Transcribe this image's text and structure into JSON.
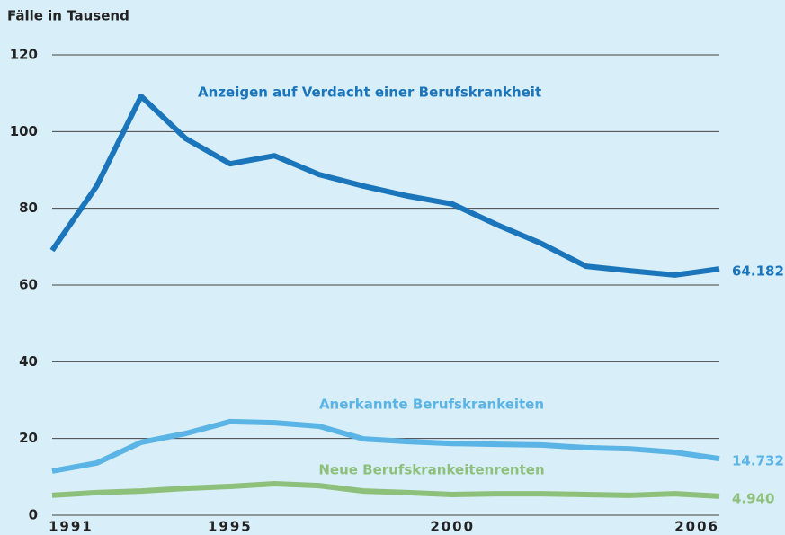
{
  "chart_data": {
    "type": "line",
    "y_axis_label": "Fälle in Tausend",
    "x": [
      1991,
      1992,
      1993,
      1994,
      1995,
      1996,
      1997,
      1998,
      1999,
      2000,
      2001,
      2002,
      2003,
      2004,
      2005,
      2006
    ],
    "xlim": [
      1991,
      2006
    ],
    "xticks": [
      1991,
      1995,
      2000,
      2006
    ],
    "ylim": [
      0,
      120
    ],
    "yticks": [
      0,
      20,
      40,
      60,
      80,
      100,
      120
    ],
    "grid": true,
    "series": [
      {
        "name": "Anzeigen auf Verdacht einer Berufskrankheit",
        "color": "#1a75bb",
        "values": [
          69,
          85.8,
          109.2,
          98.2,
          91.6,
          93.7,
          88.8,
          85.8,
          83.2,
          81.1,
          75.7,
          70.8,
          64.9,
          63.7,
          62.6,
          64.182
        ],
        "value_labels": [
          null,
          null,
          null,
          null,
          null,
          null,
          null,
          null,
          null,
          null,
          null,
          null,
          null,
          null,
          null,
          "64.182"
        ]
      },
      {
        "name": "Anerkannte Berufskrankeiten",
        "color": "#5ab4e5",
        "values": [
          11.5,
          13.6,
          19,
          21.3,
          24.4,
          24.1,
          23.2,
          19.9,
          19.2,
          18.7,
          18.5,
          18.3,
          17.6,
          17.3,
          16.4,
          14.732
        ],
        "value_labels": [
          null,
          null,
          null,
          null,
          null,
          null,
          null,
          null,
          null,
          null,
          null,
          null,
          null,
          null,
          null,
          "14.732"
        ]
      },
      {
        "name": "Neue Berufskrankeitenrenten",
        "color": "#8dc07a",
        "values": [
          5.2,
          5.9,
          6.3,
          7.0,
          7.5,
          8.2,
          7.7,
          6.3,
          5.9,
          5.4,
          5.6,
          5.6,
          5.4,
          5.2,
          5.6,
          4.94
        ],
        "value_labels": [
          null,
          null,
          null,
          null,
          null,
          null,
          null,
          null,
          null,
          null,
          null,
          null,
          null,
          null,
          null,
          "4.940"
        ]
      }
    ]
  }
}
